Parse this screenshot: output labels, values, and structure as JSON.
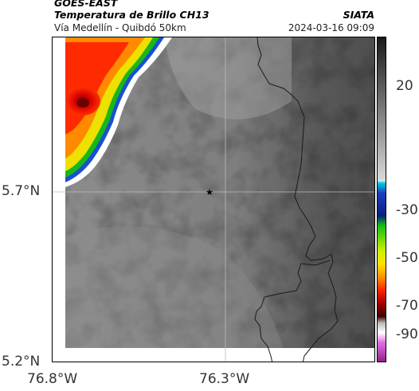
{
  "header": {
    "satellite": "GOES-EAST",
    "product": "Temperatura de Brillo CH13",
    "region": "Vía Medellín - Quibdó 50km",
    "organization": "SIATA",
    "datetime": "2024-03-16 09:09"
  },
  "axes": {
    "y_ticks": [
      "5.7°N",
      "5.2°N"
    ],
    "x_ticks": [
      "76.8°W",
      "76.3°W"
    ]
  },
  "colorbar": {
    "ticks": [
      "20",
      "-30",
      "-50",
      "-70",
      "-90"
    ],
    "colors": {
      "magenta": "#c040c0",
      "dark_red": "#7a0000",
      "red": "#ff2000",
      "orange": "#ff8c00",
      "yellow": "#f0f000",
      "green": "#10c010",
      "blue": "#1040c0",
      "cyan": "#00c8e0"
    }
  },
  "map": {
    "marker_icon": "star-icon",
    "background_color": "#8a8a8a",
    "cloud_colors": [
      "#d00000",
      "#ff6000",
      "#ffd000",
      "#20c000",
      "#1050d0"
    ]
  }
}
